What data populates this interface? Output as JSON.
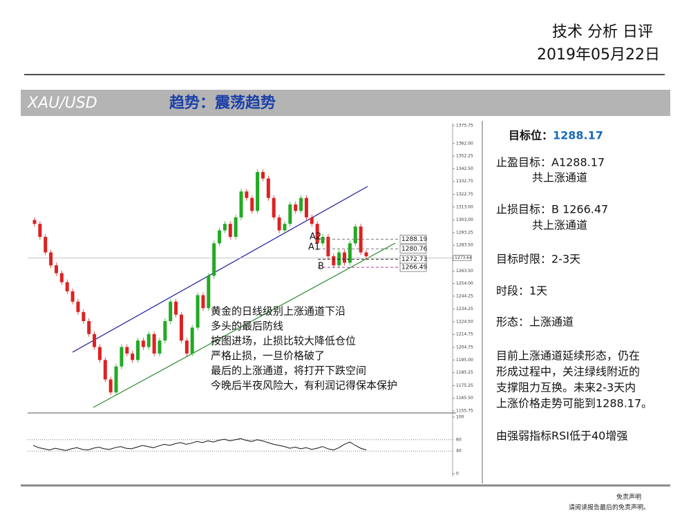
{
  "header": {
    "title": "技术 分析 日评",
    "date": "2019年05月22日"
  },
  "banner": {
    "symbol": "XAU/USD",
    "trend": "趋势：震荡趋势"
  },
  "chart": {
    "type": "candlestick",
    "closes": [
      1300,
      1290,
      1278,
      1268,
      1262,
      1255,
      1248,
      1240,
      1232,
      1225,
      1215,
      1205,
      1195,
      1180,
      1170,
      1190,
      1205,
      1200,
      1195,
      1210,
      1205,
      1215,
      1200,
      1210,
      1225,
      1240,
      1230,
      1210,
      1200,
      1220,
      1245,
      1235,
      1260,
      1285,
      1295,
      1300,
      1290,
      1305,
      1325,
      1320,
      1310,
      1340,
      1335,
      1320,
      1305,
      1295,
      1300,
      1315,
      1310,
      1320,
      1305,
      1300,
      1285,
      1290,
      1275,
      1268,
      1278,
      1270,
      1285,
      1298,
      1278,
      1275
    ],
    "ylim": [
      1155.75,
      1375.75
    ],
    "yticks": [
      1375.75,
      {
        "value": 1362,
        "label": "1362.00"
      },
      1352.25,
      {
        "value": 1342.5,
        "label": "1342.50"
      },
      1332.75,
      1322.75,
      {
        "value": 1313,
        "label": "1313.00"
      },
      {
        "value": 1303,
        "label": "1303.00"
      },
      1293.25,
      {
        "value": 1283.5,
        "label": "1283.50"
      },
      {
        "value": 1263.5,
        "label": "1263.50"
      },
      {
        "value": 1254,
        "label": "1254.00"
      },
      1244.25,
      1234.25,
      {
        "value": 1224.5,
        "label": "1224.50"
      },
      1214.75,
      1204.75,
      {
        "value": 1195,
        "label": "1195.00"
      },
      1185.25,
      1175.25,
      {
        "value": 1165.5,
        "label": "1165.50"
      },
      1155.75
    ],
    "current": 1273.64,
    "levels": [
      1288.19,
      1280.76,
      1272.73,
      1266.49
    ],
    "level_names": [
      "A2",
      "A1",
      "B"
    ],
    "annotation": [
      "黄金的日线级别上涨通道下沿",
      "多头的最后防线",
      "按图进场，止损比较大降低仓位",
      "严格止损，一旦价格破了",
      "最后的上涨通道，将打开下跌空间",
      "今晚后半夜风险大，有利润记得保本保护"
    ],
    "rsi": {
      "values": [
        50,
        46,
        44,
        42,
        45,
        43,
        41,
        44,
        46,
        43,
        42,
        45,
        47,
        44,
        43,
        46,
        48,
        45,
        44,
        47,
        50,
        48,
        46,
        49,
        52,
        50,
        53,
        55,
        52,
        54,
        57,
        55,
        58,
        56,
        59,
        61,
        58,
        60,
        62,
        59,
        57,
        60,
        58,
        55,
        52,
        50,
        48,
        45,
        47,
        44,
        46,
        43,
        45,
        48,
        44,
        42,
        46,
        52,
        56,
        50,
        45,
        42
      ],
      "ylim": [
        0,
        100
      ],
      "yticks": [
        100,
        60,
        40,
        0
      ]
    }
  },
  "panel": {
    "target_label": "目标位：",
    "target_value": "1288.17",
    "lines": [
      "止盈目标：A1288.17",
      "共上涨通道",
      "止损目标：B 1266.47",
      "共上涨通道",
      "目标时限：2-3天",
      "时段：1天",
      "形态：上涨通道"
    ],
    "paragraph": [
      "目前上涨通道延续形态，仍在",
      "形成过程中，关注绿线附近的",
      "支撑阻力互换。未来2-3天内",
      "上涨价格走势可能到1288.17。"
    ],
    "note": "由强弱指标RSI低于40增强"
  },
  "footer": {
    "title": "免责声明",
    "text": "请阅读报告最后的免责声明。"
  }
}
